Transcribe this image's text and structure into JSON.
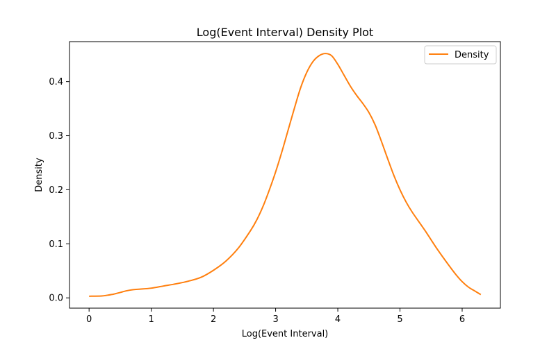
{
  "chart_data": {
    "type": "line",
    "title": "Log(Event Interval) Density Plot",
    "xlabel": "Log(Event Interval)",
    "ylabel": "Density",
    "xlim": [
      -0.315,
      6.615
    ],
    "ylim": [
      -0.019,
      0.474
    ],
    "xticks": [
      0,
      1,
      2,
      3,
      4,
      5,
      6
    ],
    "xtick_labels": [
      "0",
      "1",
      "2",
      "3",
      "4",
      "5",
      "6"
    ],
    "yticks": [
      0.0,
      0.1,
      0.2,
      0.3,
      0.4
    ],
    "ytick_labels": [
      "0.0",
      "0.1",
      "0.2",
      "0.3",
      "0.4"
    ],
    "grid": false,
    "legend": {
      "position": "top-right"
    },
    "series": [
      {
        "name": "Density",
        "color": "#ff7f0e",
        "x": [
          0.0,
          0.2,
          0.3,
          0.4,
          0.5,
          0.6,
          0.7,
          0.8,
          1.0,
          1.2,
          1.4,
          1.6,
          1.8,
          2.0,
          2.2,
          2.4,
          2.6,
          2.7,
          2.8,
          2.9,
          3.0,
          3.1,
          3.2,
          3.3,
          3.4,
          3.5,
          3.6,
          3.7,
          3.8,
          3.9,
          4.0,
          4.1,
          4.2,
          4.3,
          4.4,
          4.5,
          4.6,
          4.7,
          4.8,
          4.9,
          5.0,
          5.1,
          5.2,
          5.4,
          5.6,
          5.8,
          5.9,
          6.0,
          6.1,
          6.2,
          6.3
        ],
        "y": [
          0.003,
          0.0035,
          0.005,
          0.007,
          0.01,
          0.013,
          0.015,
          0.016,
          0.018,
          0.022,
          0.026,
          0.031,
          0.038,
          0.051,
          0.068,
          0.092,
          0.125,
          0.145,
          0.17,
          0.2,
          0.233,
          0.27,
          0.31,
          0.35,
          0.388,
          0.417,
          0.437,
          0.448,
          0.452,
          0.448,
          0.432,
          0.412,
          0.392,
          0.375,
          0.36,
          0.343,
          0.32,
          0.29,
          0.258,
          0.227,
          0.2,
          0.177,
          0.158,
          0.125,
          0.09,
          0.058,
          0.043,
          0.03,
          0.02,
          0.013,
          0.006
        ]
      }
    ]
  }
}
